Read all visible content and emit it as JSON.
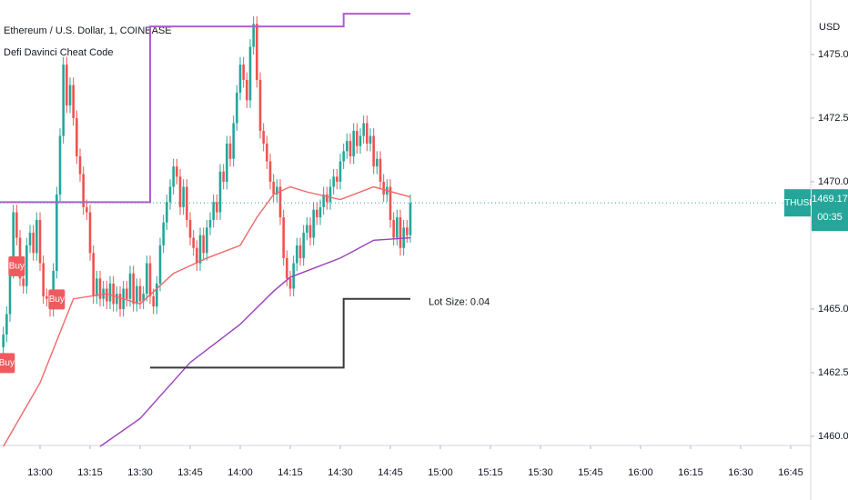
{
  "chart_data": {
    "type": "candlestick",
    "title": "Ethereum / U.S. Dollar, 1, COINBASE",
    "subtitle": "Defi Davinci Cheat Code",
    "currency": "USD",
    "symbol_label": "ETHUSD",
    "countdown": "00:35",
    "up_color": "#26a69a",
    "down_color": "#ef5350",
    "x": [
      "12:49",
      "12:50",
      "12:51",
      "12:52",
      "12:53",
      "12:54",
      "12:55",
      "12:56",
      "12:57",
      "12:58",
      "12:59",
      "13:00",
      "13:01",
      "13:02",
      "13:03",
      "13:04",
      "13:05",
      "13:06",
      "13:07",
      "13:08",
      "13:09",
      "13:10",
      "13:11",
      "13:12",
      "13:13",
      "13:14",
      "13:15",
      "13:16",
      "13:17",
      "13:18",
      "13:19",
      "13:20",
      "13:21",
      "13:22",
      "13:23",
      "13:24",
      "13:25",
      "13:26",
      "13:27",
      "13:28",
      "13:29",
      "13:30",
      "13:31",
      "13:32",
      "13:33",
      "13:34",
      "13:35",
      "13:36",
      "13:37",
      "13:38",
      "13:39",
      "13:40",
      "13:41",
      "13:42",
      "13:43",
      "13:44",
      "13:45",
      "13:46",
      "13:47",
      "13:48",
      "13:49",
      "13:50",
      "13:51",
      "13:52",
      "13:53",
      "13:54",
      "13:55",
      "13:56",
      "13:57",
      "13:58",
      "13:59",
      "14:00",
      "14:01",
      "14:02",
      "14:03",
      "14:04",
      "14:05",
      "14:06",
      "14:07",
      "14:08",
      "14:09",
      "14:10",
      "14:11",
      "14:12",
      "14:13",
      "14:14",
      "14:15",
      "14:16",
      "14:17",
      "14:18",
      "14:19",
      "14:20",
      "14:21",
      "14:22",
      "14:23",
      "14:24",
      "14:25",
      "14:26",
      "14:27",
      "14:28",
      "14:29",
      "14:30",
      "14:31",
      "14:32",
      "14:33",
      "14:34",
      "14:35",
      "14:36",
      "14:37",
      "14:38",
      "14:39",
      "14:40",
      "14:41",
      "14:42",
      "14:43",
      "14:44",
      "14:45",
      "14:46",
      "14:47",
      "14:48",
      "14:49",
      "14:50",
      "14:51"
    ],
    "open": [
      1463.5,
      1464.0,
      1464.8,
      1466.5,
      1468.8,
      1467.8,
      1466.2,
      1465.9,
      1467.5,
      1468.0,
      1467.2,
      1468.5,
      1466.8,
      1465.5,
      1465.4,
      1465.0,
      1466.5,
      1469.5,
      1471.8,
      1474.6,
      1473.0,
      1473.8,
      1472.5,
      1471.0,
      1470.3,
      1469.0,
      1468.8,
      1467.2,
      1465.5,
      1466.2,
      1465.4,
      1465.8,
      1465.3,
      1466.0,
      1465.2,
      1465.6,
      1465.0,
      1465.8,
      1465.4,
      1466.4,
      1465.2,
      1465.9,
      1465.3,
      1465.6,
      1466.8,
      1465.5,
      1465.1,
      1466.0,
      1467.5,
      1468.4,
      1469.2,
      1469.8,
      1470.6,
      1470.2,
      1469.0,
      1469.8,
      1468.5,
      1467.8,
      1467.4,
      1466.8,
      1467.9,
      1467.2,
      1468.2,
      1468.5,
      1469.2,
      1468.8,
      1470.4,
      1470.0,
      1471.5,
      1470.9,
      1472.3,
      1473.5,
      1474.6,
      1474.0,
      1473.2,
      1475.3,
      1476.2,
      1474.0,
      1472.0,
      1471.5,
      1470.8,
      1470.0,
      1469.5,
      1469.8,
      1468.6,
      1467.0,
      1466.2,
      1465.8,
      1466.8,
      1467.5,
      1467.0,
      1468.0,
      1468.3,
      1467.8,
      1468.9,
      1468.6,
      1469.0,
      1469.5,
      1469.2,
      1469.8,
      1470.2,
      1470.0,
      1470.8,
      1471.2,
      1471.6,
      1471.0,
      1472.0,
      1471.4,
      1471.8,
      1472.3,
      1471.5,
      1471.8,
      1470.6,
      1470.9,
      1470.0,
      1469.5,
      1469.8,
      1468.5,
      1467.8,
      1468.6,
      1467.4,
      1468.2,
      1467.9
    ],
    "high": [
      1464.3,
      1465.1,
      1466.8,
      1469.1,
      1469.1,
      1468.1,
      1466.5,
      1467.8,
      1468.3,
      1468.3,
      1468.8,
      1468.8,
      1467.1,
      1465.8,
      1465.7,
      1466.8,
      1469.8,
      1472.1,
      1474.9,
      1474.9,
      1474.1,
      1474.1,
      1472.8,
      1471.3,
      1470.6,
      1469.3,
      1469.1,
      1467.5,
      1466.5,
      1466.5,
      1466.1,
      1466.1,
      1466.3,
      1466.3,
      1465.9,
      1465.9,
      1466.1,
      1466.1,
      1466.7,
      1466.7,
      1466.2,
      1466.2,
      1465.9,
      1467.1,
      1467.1,
      1465.8,
      1466.3,
      1467.8,
      1468.7,
      1469.5,
      1470.1,
      1470.9,
      1470.9,
      1470.5,
      1470.1,
      1470.1,
      1468.8,
      1468.1,
      1467.7,
      1468.2,
      1468.2,
      1468.5,
      1468.8,
      1469.5,
      1469.5,
      1470.7,
      1470.7,
      1471.8,
      1471.8,
      1472.6,
      1473.8,
      1474.9,
      1474.9,
      1474.3,
      1475.6,
      1476.5,
      1476.5,
      1474.3,
      1472.3,
      1471.8,
      1471.1,
      1470.3,
      1470.1,
      1470.1,
      1468.9,
      1467.3,
      1466.5,
      1467.1,
      1467.8,
      1467.8,
      1468.3,
      1468.6,
      1468.6,
      1469.2,
      1469.2,
      1469.3,
      1469.8,
      1469.8,
      1470.1,
      1470.5,
      1470.5,
      1471.1,
      1471.5,
      1471.9,
      1471.9,
      1472.3,
      1472.3,
      1472.1,
      1472.6,
      1472.6,
      1472.1,
      1472.1,
      1471.2,
      1471.2,
      1470.3,
      1470.1,
      1470.1,
      1468.8,
      1468.9,
      1468.9,
      1468.5,
      1468.5,
      1469.5
    ],
    "low": [
      1463.2,
      1463.7,
      1464.5,
      1466.2,
      1467.5,
      1465.9,
      1465.6,
      1465.6,
      1467.2,
      1466.9,
      1466.9,
      1466.5,
      1465.2,
      1465.1,
      1464.7,
      1464.7,
      1466.2,
      1469.2,
      1471.5,
      1472.7,
      1472.7,
      1472.2,
      1470.7,
      1470.0,
      1468.7,
      1468.5,
      1466.9,
      1465.2,
      1465.2,
      1465.1,
      1465.1,
      1465.0,
      1465.0,
      1464.9,
      1464.9,
      1464.7,
      1464.7,
      1465.1,
      1465.1,
      1464.9,
      1464.9,
      1465.0,
      1465.0,
      1465.3,
      1465.2,
      1464.8,
      1464.8,
      1465.7,
      1467.2,
      1468.1,
      1468.9,
      1469.5,
      1469.9,
      1468.7,
      1468.7,
      1468.2,
      1467.5,
      1467.1,
      1466.5,
      1466.5,
      1466.9,
      1466.9,
      1467.9,
      1468.2,
      1468.5,
      1468.5,
      1469.7,
      1469.7,
      1470.6,
      1470.6,
      1472.0,
      1473.2,
      1473.7,
      1472.9,
      1472.9,
      1475.0,
      1473.7,
      1471.7,
      1471.2,
      1470.5,
      1469.7,
      1469.2,
      1469.2,
      1468.3,
      1466.7,
      1465.9,
      1465.5,
      1465.5,
      1466.5,
      1466.7,
      1466.7,
      1467.7,
      1467.5,
      1467.5,
      1468.3,
      1468.3,
      1468.7,
      1468.9,
      1468.9,
      1469.5,
      1469.7,
      1469.7,
      1470.5,
      1470.9,
      1470.7,
      1470.7,
      1471.1,
      1471.1,
      1471.5,
      1471.2,
      1471.2,
      1470.3,
      1470.3,
      1469.7,
      1469.2,
      1469.2,
      1468.2,
      1467.5,
      1467.5,
      1467.1,
      1467.1,
      1467.6,
      1467.6
    ],
    "close": [
      1464.0,
      1464.8,
      1466.5,
      1468.8,
      1467.8,
      1466.2,
      1465.9,
      1467.5,
      1468.0,
      1467.2,
      1468.5,
      1466.8,
      1465.5,
      1465.4,
      1465.0,
      1466.5,
      1469.5,
      1471.8,
      1474.6,
      1473.0,
      1473.8,
      1472.5,
      1471.0,
      1470.3,
      1469.0,
      1468.8,
      1467.2,
      1465.5,
      1466.2,
      1465.4,
      1465.8,
      1465.3,
      1466.0,
      1465.2,
      1465.6,
      1465.0,
      1465.8,
      1465.4,
      1466.4,
      1465.2,
      1465.9,
      1465.3,
      1465.6,
      1466.8,
      1465.5,
      1465.1,
      1466.0,
      1467.5,
      1468.4,
      1469.2,
      1469.8,
      1470.6,
      1470.2,
      1469.0,
      1469.8,
      1468.5,
      1467.8,
      1467.4,
      1466.8,
      1467.9,
      1467.2,
      1468.2,
      1468.5,
      1469.2,
      1468.8,
      1470.4,
      1470.0,
      1471.5,
      1470.9,
      1472.3,
      1473.5,
      1474.6,
      1474.0,
      1473.2,
      1475.3,
      1476.2,
      1474.0,
      1472.0,
      1471.5,
      1470.8,
      1470.0,
      1469.5,
      1469.8,
      1468.6,
      1467.0,
      1466.2,
      1465.8,
      1466.8,
      1467.5,
      1467.0,
      1468.0,
      1468.3,
      1467.8,
      1468.9,
      1468.6,
      1469.0,
      1469.5,
      1469.2,
      1469.8,
      1470.2,
      1470.0,
      1470.8,
      1471.2,
      1471.6,
      1471.0,
      1472.0,
      1471.4,
      1471.8,
      1472.3,
      1471.5,
      1471.8,
      1470.6,
      1470.9,
      1470.0,
      1469.5,
      1469.8,
      1468.5,
      1467.8,
      1468.6,
      1467.4,
      1468.2,
      1467.9,
      1469.17
    ],
    "series": [
      {
        "color": "#f0686b",
        "x": [
          "12:49",
          "13:00",
          "13:10",
          "13:20",
          "13:30",
          "13:40",
          "13:50",
          "14:00",
          "14:05",
          "14:10",
          "14:15",
          "14:20",
          "14:30",
          "14:40",
          "14:51"
        ],
        "values": [
          1459.6,
          1462.1,
          1465.4,
          1465.6,
          1465.2,
          1466.4,
          1467.0,
          1467.5,
          1468.6,
          1469.5,
          1469.8,
          1469.6,
          1469.3,
          1469.8,
          1469.4
        ]
      },
      {
        "color": "#9c3fbf",
        "x": [
          "13:18",
          "13:30",
          "13:45",
          "14:00",
          "14:10",
          "14:15",
          "14:20",
          "14:30",
          "14:40",
          "14:51"
        ],
        "values": [
          1459.6,
          1460.7,
          1462.9,
          1464.4,
          1465.7,
          1466.25,
          1466.5,
          1467.0,
          1467.7,
          1467.8
        ]
      },
      {
        "color": "#b25bd0",
        "step": true,
        "x": [
          "12:48",
          "13:33",
          "14:31",
          "14:51"
        ],
        "values": [
          1469.2,
          1476.1,
          1476.6,
          1476.6
        ]
      },
      {
        "color": "#3a3a3a",
        "step": true,
        "x": [
          "13:33",
          "14:31",
          "14:51"
        ],
        "values": [
          1462.7,
          1465.4,
          1465.4
        ],
        "end_label": "Lot Size: 0.04"
      }
    ],
    "annotations": [
      {
        "text": "Buy",
        "x": "12:50"
      },
      {
        "text": "Buy",
        "x": "12:53"
      },
      {
        "text": "Buy",
        "x": "13:05"
      }
    ],
    "xlim": [
      "12:48",
      "16:51"
    ],
    "xticks": [
      "13:00",
      "13:15",
      "13:30",
      "13:45",
      "14:00",
      "14:15",
      "14:30",
      "14:45",
      "15:00",
      "15:15",
      "15:30",
      "15:45",
      "16:00",
      "16:15",
      "16:30",
      "16:45"
    ],
    "ylim": [
      1459.64,
      1477.14
    ],
    "yticks": [
      {
        "value": 1460,
        "label": "1460.00"
      },
      {
        "value": 1462.5,
        "label": "1462.50"
      },
      {
        "value": 1465,
        "label": "1465.00"
      },
      {
        "value": 1470,
        "label": "1470.00"
      },
      {
        "value": 1472.5,
        "label": "1472.50"
      },
      {
        "value": 1475,
        "label": "1475.00"
      }
    ],
    "grid": false
  }
}
